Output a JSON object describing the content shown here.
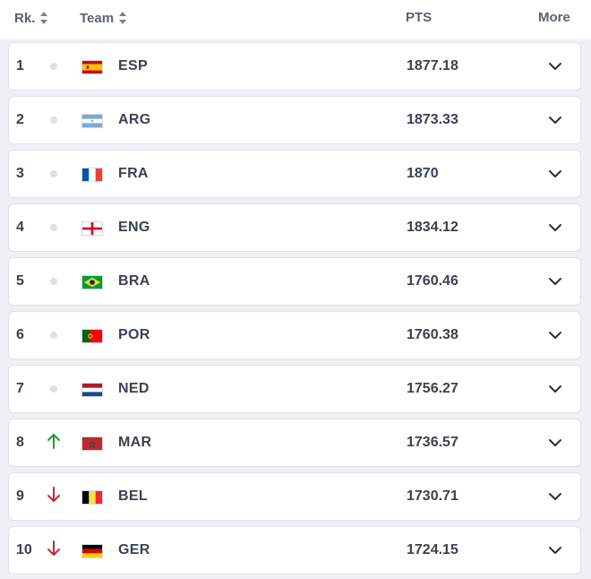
{
  "header": {
    "rank_label": "Rk.",
    "team_label": "Team",
    "pts_label": "PTS",
    "more_label": "More"
  },
  "colors": {
    "up": "#1f9d3a",
    "down": "#c0283a",
    "same": "#dde0e5"
  },
  "rows": [
    {
      "rank": "1",
      "team": "ESP",
      "points": "1877.18",
      "movement": "same",
      "flag": "spain-flag-icon"
    },
    {
      "rank": "2",
      "team": "ARG",
      "points": "1873.33",
      "movement": "same",
      "flag": "argentina-flag-icon"
    },
    {
      "rank": "3",
      "team": "FRA",
      "points": "1870",
      "movement": "same",
      "flag": "france-flag-icon"
    },
    {
      "rank": "4",
      "team": "ENG",
      "points": "1834.12",
      "movement": "same",
      "flag": "england-flag-icon"
    },
    {
      "rank": "5",
      "team": "BRA",
      "points": "1760.46",
      "movement": "same",
      "flag": "brazil-flag-icon"
    },
    {
      "rank": "6",
      "team": "POR",
      "points": "1760.38",
      "movement": "same",
      "flag": "portugal-flag-icon"
    },
    {
      "rank": "7",
      "team": "NED",
      "points": "1756.27",
      "movement": "same",
      "flag": "netherlands-flag-icon"
    },
    {
      "rank": "8",
      "team": "MAR",
      "points": "1736.57",
      "movement": "up",
      "flag": "morocco-flag-icon"
    },
    {
      "rank": "9",
      "team": "BEL",
      "points": "1730.71",
      "movement": "down",
      "flag": "belgium-flag-icon"
    },
    {
      "rank": "10",
      "team": "GER",
      "points": "1724.15",
      "movement": "down",
      "flag": "germany-flag-icon"
    }
  ]
}
